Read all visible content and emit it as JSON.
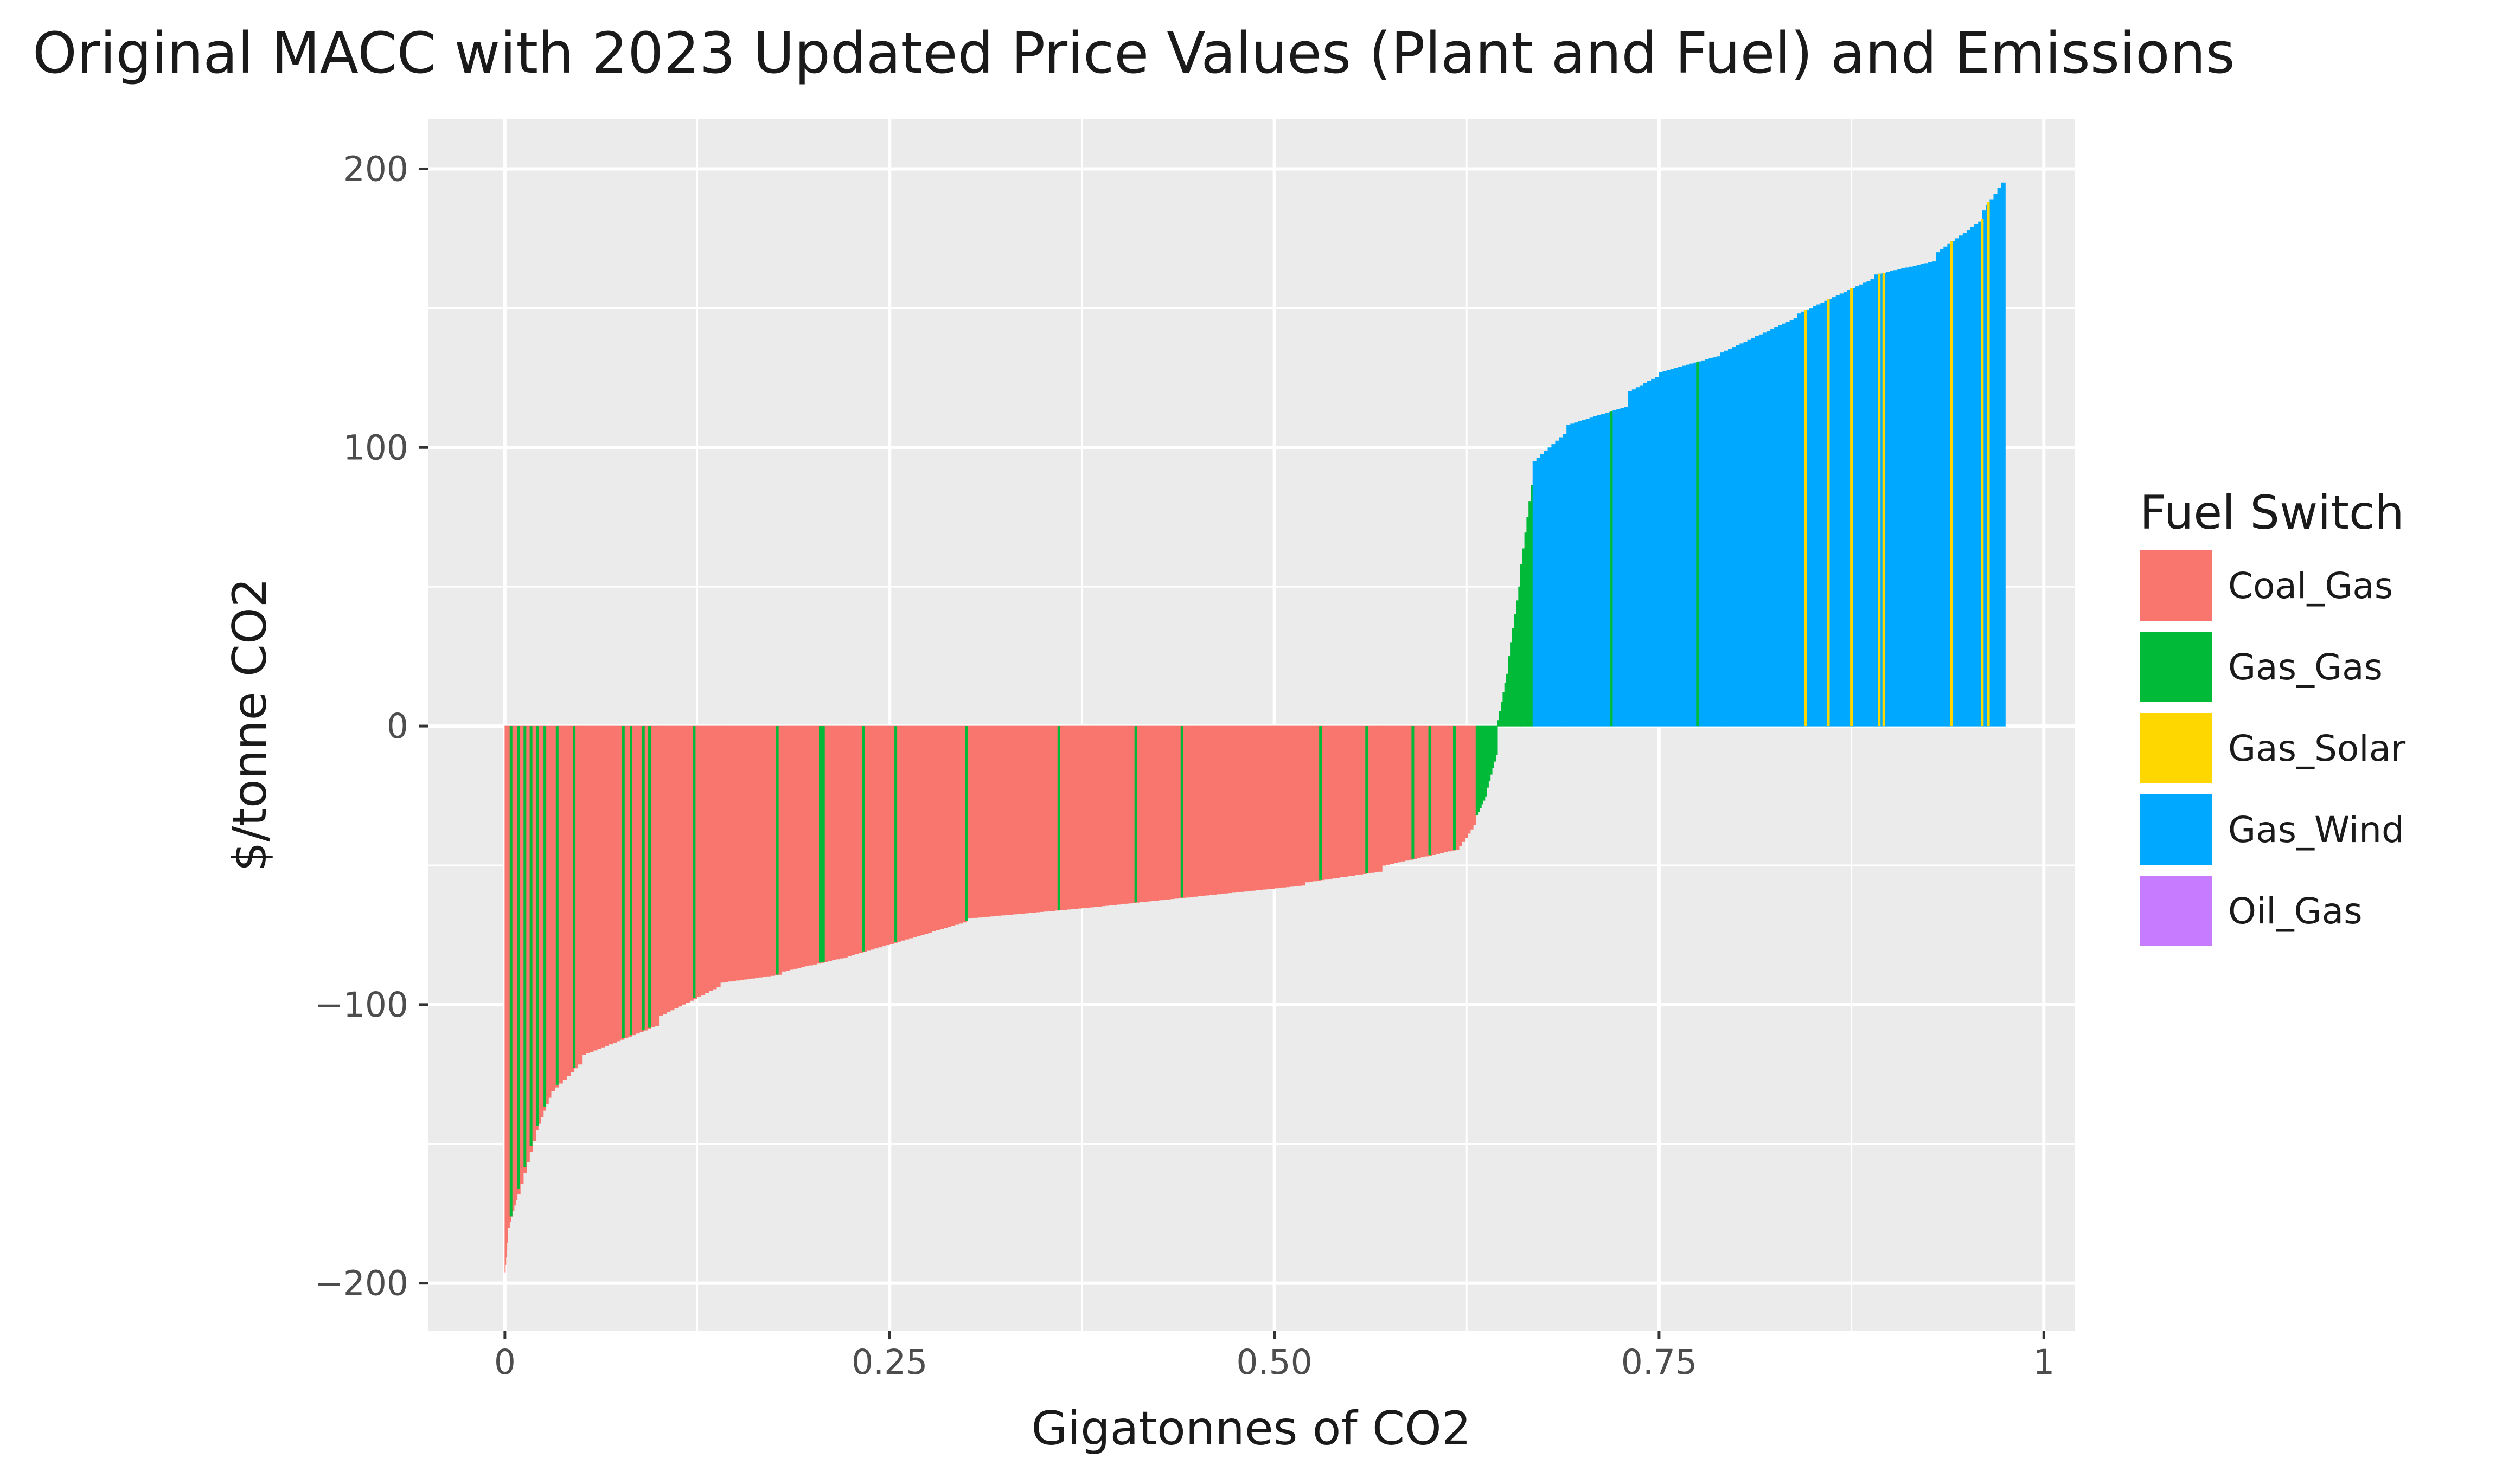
{
  "chart_data": {
    "type": "bar",
    "title": "Original MACC with 2023 Updated Price Values (Plant and Fuel) and Emissions",
    "xlabel": "Gigatonnes of CO2",
    "ylabel": "$/tonne CO2",
    "xlim": [
      -0.05,
      1.02
    ],
    "ylim": [
      -217,
      218
    ],
    "x_ticks": [
      0,
      0.25,
      0.5,
      0.75,
      1
    ],
    "x_tick_labels": [
      "0",
      "0.25",
      "0.50",
      "0.75",
      "1"
    ],
    "y_ticks": [
      -200,
      -100,
      0,
      100,
      200
    ],
    "y_tick_labels": [
      "−200",
      "−100",
      "0",
      "100",
      "200"
    ],
    "grid": true,
    "legend": {
      "title": "Fuel Switch",
      "position": "right",
      "entries": [
        {
          "name": "Coal_Gas",
          "color": "#F8766D"
        },
        {
          "name": "Gas_Gas",
          "color": "#00BA38"
        },
        {
          "name": "Gas_Solar",
          "color": "#FFD700"
        },
        {
          "name": "Gas_Wind",
          "color": "#00A9FF"
        },
        {
          "name": "Oil_Gas",
          "color": "#C77CFF"
        }
      ]
    },
    "segments": [
      {
        "fuel": "Coal_Gas",
        "x_start": 0.0,
        "x_end": 0.002,
        "y_start": -196,
        "y_end": -180
      },
      {
        "fuel": "Coal_Gas",
        "x_start": 0.002,
        "x_end": 0.008,
        "y_start": -180,
        "y_end": -168
      },
      {
        "fuel": "Coal_Gas",
        "x_start": 0.008,
        "x_end": 0.02,
        "y_start": -168,
        "y_end": -145
      },
      {
        "fuel": "Coal_Gas",
        "x_start": 0.02,
        "x_end": 0.03,
        "y_start": -145,
        "y_end": -131
      },
      {
        "fuel": "Coal_Gas",
        "x_start": 0.03,
        "x_end": 0.05,
        "y_start": -131,
        "y_end": -120
      },
      {
        "fuel": "Coal_Gas",
        "x_start": 0.05,
        "x_end": 0.1,
        "y_start": -118,
        "y_end": -107
      },
      {
        "fuel": "Coal_Gas",
        "x_start": 0.1,
        "x_end": 0.14,
        "y_start": -104,
        "y_end": -93
      },
      {
        "fuel": "Coal_Gas",
        "x_start": 0.14,
        "x_end": 0.18,
        "y_start": -92,
        "y_end": -89
      },
      {
        "fuel": "Coal_Gas",
        "x_start": 0.18,
        "x_end": 0.22,
        "y_start": -88,
        "y_end": -83
      },
      {
        "fuel": "Coal_Gas",
        "x_start": 0.22,
        "x_end": 0.3,
        "y_start": -83,
        "y_end": -70
      },
      {
        "fuel": "Coal_Gas",
        "x_start": 0.3,
        "x_end": 0.38,
        "y_start": -69,
        "y_end": -65
      },
      {
        "fuel": "Coal_Gas",
        "x_start": 0.38,
        "x_end": 0.45,
        "y_start": -65,
        "y_end": -61
      },
      {
        "fuel": "Coal_Gas",
        "x_start": 0.45,
        "x_end": 0.52,
        "y_start": -61,
        "y_end": -57
      },
      {
        "fuel": "Coal_Gas",
        "x_start": 0.52,
        "x_end": 0.57,
        "y_start": -56,
        "y_end": -52
      },
      {
        "fuel": "Coal_Gas",
        "x_start": 0.57,
        "x_end": 0.62,
        "y_start": -50,
        "y_end": -44
      },
      {
        "fuel": "Coal_Gas",
        "x_start": 0.62,
        "x_end": 0.631,
        "y_start": -43,
        "y_end": -34
      },
      {
        "fuel": "Gas_Gas",
        "x_start": 0.631,
        "x_end": 0.638,
        "y_start": -32,
        "y_end": -24
      },
      {
        "fuel": "Gas_Gas",
        "x_start": 0.638,
        "x_end": 0.645,
        "y_start": -22,
        "y_end": -8
      },
      {
        "fuel": "Gas_Gas",
        "x_start": 0.645,
        "x_end": 0.652,
        "y_start": 2,
        "y_end": 22
      },
      {
        "fuel": "Gas_Gas",
        "x_start": 0.652,
        "x_end": 0.66,
        "y_start": 25,
        "y_end": 55
      },
      {
        "fuel": "Gas_Gas",
        "x_start": 0.66,
        "x_end": 0.668,
        "y_start": 58,
        "y_end": 92
      },
      {
        "fuel": "Gas_Wind",
        "x_start": 0.668,
        "x_end": 0.69,
        "y_start": 95,
        "y_end": 106
      },
      {
        "fuel": "Gas_Wind",
        "x_start": 0.69,
        "x_end": 0.73,
        "y_start": 108,
        "y_end": 115
      },
      {
        "fuel": "Gas_Wind",
        "x_start": 0.73,
        "x_end": 0.75,
        "y_start": 120,
        "y_end": 126
      },
      {
        "fuel": "Gas_Wind",
        "x_start": 0.75,
        "x_end": 0.79,
        "y_start": 127,
        "y_end": 133
      },
      {
        "fuel": "Gas_Wind",
        "x_start": 0.79,
        "x_end": 0.84,
        "y_start": 134,
        "y_end": 147
      },
      {
        "fuel": "Gas_Wind",
        "x_start": 0.84,
        "x_end": 0.89,
        "y_start": 148,
        "y_end": 161
      },
      {
        "fuel": "Gas_Wind",
        "x_start": 0.89,
        "x_end": 0.93,
        "y_start": 162,
        "y_end": 167
      },
      {
        "fuel": "Gas_Wind",
        "x_start": 0.93,
        "x_end": 0.96,
        "y_start": 170,
        "y_end": 182
      },
      {
        "fuel": "Gas_Wind",
        "x_start": 0.96,
        "x_end": 0.975,
        "y_start": 185,
        "y_end": 197
      }
    ],
    "interspersed_bars": [
      {
        "fuel": "Gas_Gas",
        "x": [
          0.004,
          0.009,
          0.013,
          0.017,
          0.021,
          0.026,
          0.034,
          0.045,
          0.077,
          0.082,
          0.09,
          0.094,
          0.123,
          0.177,
          0.205,
          0.207,
          0.233,
          0.254,
          0.3,
          0.36,
          0.41,
          0.44,
          0.53,
          0.56,
          0.59,
          0.601,
          0.617
        ]
      },
      {
        "fuel": "Gas_Gas",
        "x": [
          0.719,
          0.775
        ]
      },
      {
        "fuel": "Gas_Solar",
        "x": [
          0.845,
          0.86,
          0.875,
          0.893,
          0.896,
          0.94,
          0.96,
          0.964
        ]
      }
    ]
  }
}
